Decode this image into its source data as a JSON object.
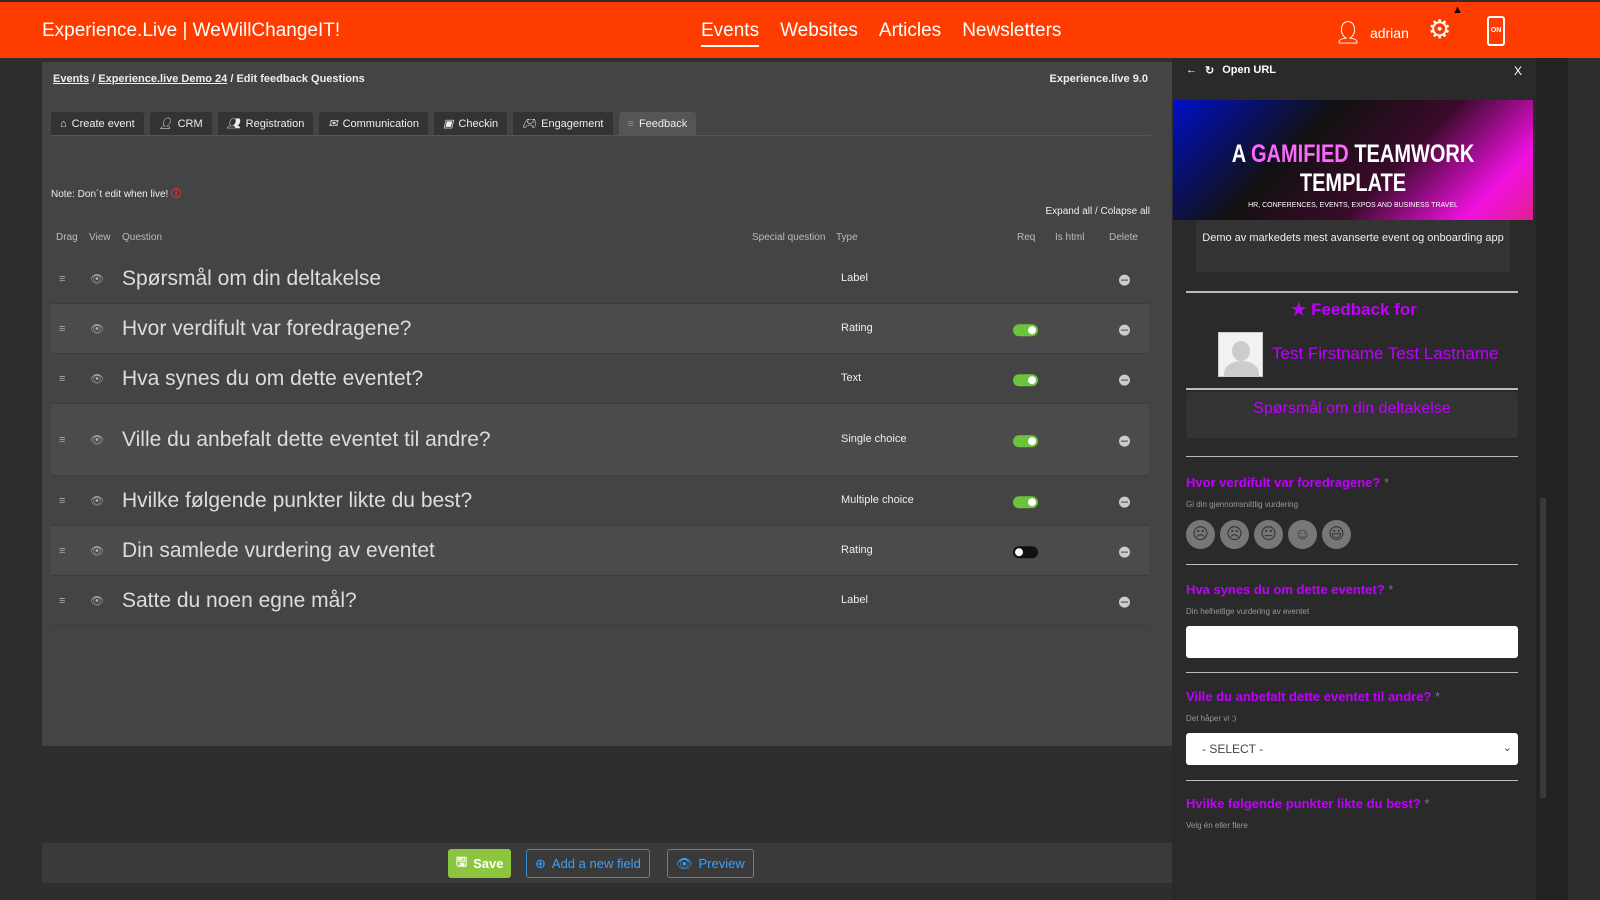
{
  "header": {
    "brand": "Experience.Live | WeWillChangeIT!",
    "nav": [
      "Events",
      "Websites",
      "Articles",
      "Newsletters"
    ],
    "active_nav": "Events",
    "user": "adrian",
    "phone_badge": "ON",
    "accent": "#ff3c00"
  },
  "breadcrumb": {
    "events": "Events",
    "event": "Experience.live Demo 24",
    "page": "Edit feedback Questions"
  },
  "version": "Experience.live 9.0",
  "tabs": [
    "Create event",
    "CRM",
    "Registration",
    "Communication",
    "Checkin",
    "Engagement",
    "Feedback"
  ],
  "active_tab": "Feedback",
  "note": "Note: Don´t edit when live!",
  "expand": "Expand all / Colapse all",
  "columns": {
    "drag": "Drag",
    "view": "View",
    "question": "Question",
    "special": "Special question",
    "type": "Type",
    "req": "Req",
    "is_html": "Is html",
    "delete": "Delete"
  },
  "rows": [
    {
      "question": "Spørsmål om din deltakelse",
      "type": "Label",
      "req": null
    },
    {
      "question": "Hvor verdifult var foredragene?",
      "type": "Rating",
      "req": true
    },
    {
      "question": "Hva synes du om dette eventet?",
      "type": "Text",
      "req": true
    },
    {
      "question": "Ville du anbefalt dette eventet til andre?",
      "type": "Single choice",
      "req": true
    },
    {
      "question": "Hvilke følgende punkter likte du best?",
      "type": "Multiple choice",
      "req": true
    },
    {
      "question": "Din samlede vurdering av eventet",
      "type": "Rating",
      "req": false
    },
    {
      "question": "Satte du noen egne mål?",
      "type": "Label",
      "req": null
    }
  ],
  "footer": {
    "save": "Save",
    "add": "Add a new field",
    "preview": "Preview"
  },
  "preview": {
    "toolbar": "Open URL",
    "close": "X",
    "banner": {
      "pre": "A",
      "highlight": "GAMIFIED",
      "post": "TEAMWORK TEMPLATE",
      "sub": "HR, CONFERENCES, EVENTS, EXPOS AND BUSINESS TRAVEL"
    },
    "description": "Demo av markedets mest avanserte event og onboarding app",
    "feedback_for": "Feedback for",
    "name": "Test Firstname Test Lastname",
    "label": "Spørsmål om din deltakelse",
    "q1": "Hvor verdifult var foredragene?",
    "q1_help": "Gi din gjennomsnittlig vurdering",
    "q2": "Hva synes du om dette eventet?",
    "q2_help": "Din helhetlige vurdering av eventet",
    "q3": "Ville du anbefalt dette eventet til andre?",
    "q3_help": "Det håper vi :)",
    "q3_select": "- SELECT -",
    "q4": "Hvilke følgende punkter likte du best?",
    "q4_help": "Velg én eller flere",
    "required_mark": "*",
    "color": "#c000ff"
  }
}
